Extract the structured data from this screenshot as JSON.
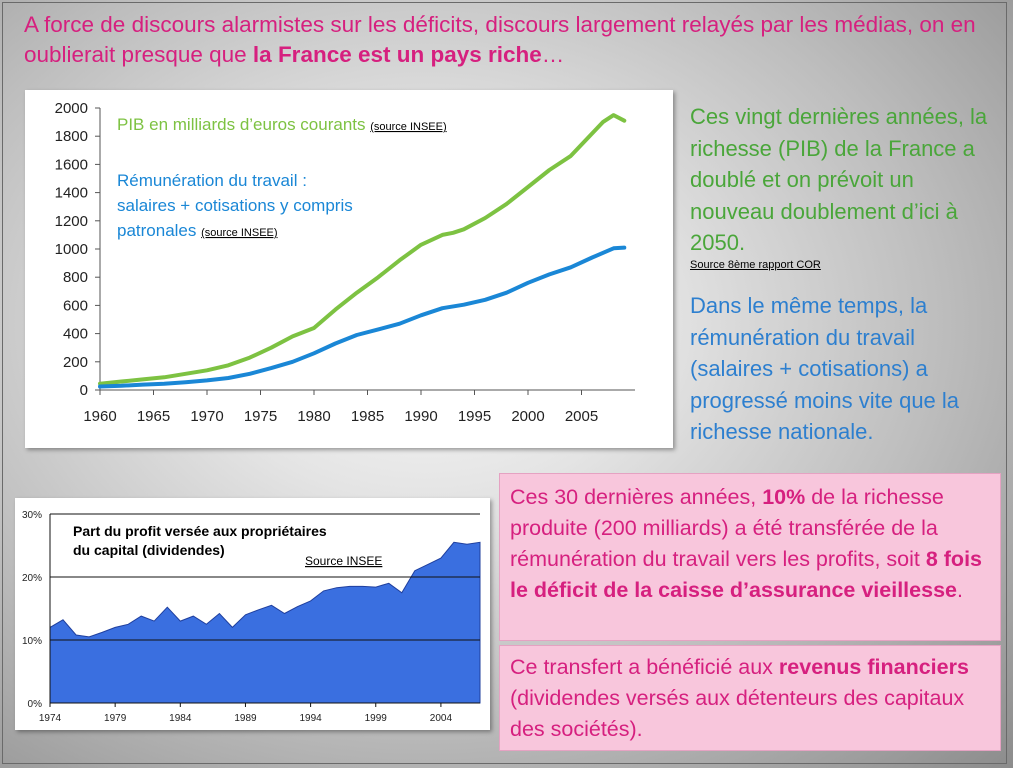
{
  "slide": {
    "title_prefix": "A force de discours alarmistes sur les déficits, discours largement relayés par les médias, on en oublierait presque que ",
    "title_bold": "la France est un pays riche",
    "title_suffix": "…"
  },
  "right_text": {
    "green": "Ces vingt dernières années, la richesse (PIB) de la France a doublé et on prévoit un nouveau doublement d’ici à 2050.",
    "source": "Source 8ème rapport COR",
    "blue": "Dans le même temps, la rémunération du travail (salaires + cotisations) a progressé moins vite que la richesse nationale."
  },
  "box1": {
    "t1": "Ces 30 dernières années, ",
    "b1": "10%",
    "t2": " de la richesse produite (200 milliards) a été transférée de la rémunération du travail vers les profits, soit ",
    "b2": "8 fois le déficit de la caisse d’assurance vieillesse",
    "t3": "."
  },
  "box2": {
    "t1": "Ce transfert a bénéficié aux ",
    "b1": "revenus financiers",
    "t2": " (dividendes versés aux détenteurs des capitaux des sociétés)."
  },
  "colors": {
    "title_pink": "#d6207f",
    "pib_green": "#7dc242",
    "remun_blue": "#1a87d6",
    "area_blue": "#3a6fe0",
    "box_pink": "#f8c6dc"
  },
  "chart_data": [
    {
      "type": "line",
      "title": "",
      "xlabel": "",
      "ylabel": "",
      "xlim": [
        1960,
        2010
      ],
      "ylim": [
        0,
        2000
      ],
      "x_ticks": [
        "1960",
        "1965",
        "1970",
        "1975",
        "1980",
        "1985",
        "1990",
        "1995",
        "2000",
        "2005"
      ],
      "y_ticks": [
        "0",
        "200",
        "400",
        "600",
        "800",
        "1000",
        "1200",
        "1400",
        "1600",
        "1800",
        "2000"
      ],
      "grid": false,
      "series": [
        {
          "name": "PIB en milliards d’euros courants",
          "source": "(source INSEE)",
          "color": "#7dc242",
          "x": [
            1960,
            1962,
            1964,
            1966,
            1968,
            1970,
            1972,
            1974,
            1976,
            1978,
            1980,
            1982,
            1984,
            1986,
            1988,
            1990,
            1992,
            1993,
            1994,
            1996,
            1998,
            2000,
            2002,
            2004,
            2006,
            2007,
            2008,
            2009
          ],
          "values": [
            45,
            60,
            75,
            90,
            115,
            140,
            175,
            230,
            300,
            380,
            440,
            570,
            690,
            800,
            920,
            1030,
            1100,
            1115,
            1140,
            1220,
            1320,
            1440,
            1560,
            1660,
            1820,
            1900,
            1950,
            1910
          ]
        },
        {
          "name": "Rémunération du travail : salaires + cotisations  y compris patronales",
          "source": "(source INSEE)",
          "color": "#1a87d6",
          "x": [
            1960,
            1962,
            1964,
            1966,
            1968,
            1970,
            1972,
            1974,
            1976,
            1978,
            1980,
            1982,
            1984,
            1986,
            1988,
            1990,
            1992,
            1994,
            1996,
            1998,
            2000,
            2002,
            2004,
            2006,
            2008,
            2009
          ],
          "values": [
            25,
            30,
            38,
            45,
            55,
            68,
            85,
            115,
            155,
            200,
            260,
            330,
            390,
            430,
            470,
            530,
            580,
            605,
            640,
            690,
            760,
            820,
            870,
            940,
            1005,
            1010
          ]
        }
      ]
    },
    {
      "type": "area",
      "title": "Part du profit versée aux propriétaires du capital (dividendes)",
      "source": "Source INSEE",
      "xlabel": "",
      "ylabel": "",
      "ylim": [
        0,
        30
      ],
      "x_ticks": [
        "1974",
        "1979",
        "1984",
        "1989",
        "1994",
        "1999",
        "2004"
      ],
      "y_ticks": [
        "0%",
        "10%",
        "20%",
        "30%"
      ],
      "grid": true,
      "series": [
        {
          "name": "",
          "color": "#3a6fe0",
          "x": [
            1974,
            1975,
            1976,
            1977,
            1978,
            1979,
            1980,
            1981,
            1982,
            1983,
            1984,
            1985,
            1986,
            1987,
            1988,
            1989,
            1990,
            1991,
            1992,
            1993,
            1994,
            1995,
            1996,
            1997,
            1998,
            1999,
            2000,
            2001,
            2002,
            2003,
            2004,
            2005,
            2006,
            2007
          ],
          "values": [
            12,
            13.2,
            10.8,
            10.5,
            11.2,
            12,
            12.5,
            13.8,
            13,
            15.2,
            13,
            13.8,
            12.5,
            14.2,
            12,
            14,
            14.8,
            15.5,
            14.2,
            15.3,
            16.2,
            17.8,
            18.3,
            18.5,
            18.5,
            18.4,
            19,
            17.5,
            21,
            22,
            23,
            25.5,
            25.2,
            25.5
          ]
        }
      ]
    }
  ]
}
